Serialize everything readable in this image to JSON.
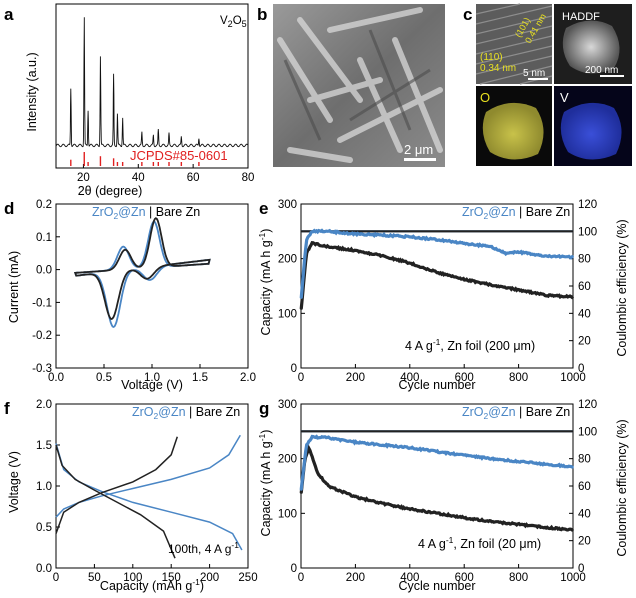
{
  "panels": {
    "a": {
      "letter": "a",
      "sample": "V",
      "sample_sub1": "2",
      "sample_o": "O",
      "sample_sub2": "5",
      "ref_label": "JCPDS#85-0601",
      "xlabel_pre": "2θ (degree)",
      "ylabel": "Intensity (a.u.)",
      "xticks": [
        "20",
        "40",
        "60",
        "80"
      ]
    },
    "b": {
      "letter": "b",
      "scale": "2 μm"
    },
    "c": {
      "letter": "c",
      "hrtem_plane1": "(110)",
      "hrtem_d1": "0.34 nm",
      "hrtem_plane2": "(101)",
      "hrtem_d2": "0.41 nm",
      "hrtem_scale": "5 nm",
      "haadf_label": "HADDF",
      "haadf_scale": "200 nm",
      "map_o": "O",
      "map_v": "V"
    },
    "legend": {
      "zro": "ZrO",
      "sub2": "2",
      "atzn": "@Zn",
      "sep": " | ",
      "bare": "Bare Zn"
    },
    "d": {
      "letter": "d",
      "xlabel": "Voltage (V)",
      "ylabel": "Current (mA)"
    },
    "e": {
      "letter": "e",
      "xlabel": "Cycle number",
      "ylabel": "Capacity (mA h g",
      "ylabel_sup": "-1",
      "ylabel_end": ")",
      "y2label": "Coulombic efficiency (%)",
      "cond_a": "4 A g",
      "cond_sup": "-1",
      "cond_b": ", Zn foil (200 μm)"
    },
    "f": {
      "letter": "f",
      "xlabel": "Capacity (mAh g",
      "xlabel_sup": "-1",
      "xlabel_end": ")",
      "ylabel": "Voltage (V)",
      "cond_a": "100th, 4 A g",
      "cond_sup": "-1"
    },
    "g": {
      "letter": "g",
      "xlabel": "Cycle number",
      "ylabel": "Capacity (mA h g",
      "ylabel_sup": "-1",
      "ylabel_end": ")",
      "y2label": "Coulombic efficiency (%)",
      "cond_a": "4 A g",
      "cond_sup": "-1",
      "cond_b": ", Zn foil (20 μm)"
    }
  },
  "colors": {
    "zro2": "#4a86c5",
    "bare": "#222222",
    "ref": "#e02020"
  },
  "chart_data": [
    {
      "id": "a",
      "type": "line",
      "title": "V2O5",
      "xlabel": "2θ (degree)",
      "ylabel": "Intensity (a.u.)",
      "xlim": [
        10,
        80
      ],
      "xticks": [
        20,
        40,
        60,
        80
      ],
      "peaks_2theta": [
        15.4,
        20.3,
        21.7,
        26.2,
        31.0,
        32.4,
        34.3,
        41.3,
        45.5,
        47.3,
        51.2,
        55.7,
        62.1
      ],
      "peak_rel_intensity": [
        0.45,
        1.0,
        0.28,
        0.7,
        0.55,
        0.25,
        0.22,
        0.1,
        0.08,
        0.12,
        0.09,
        0.07,
        0.06
      ],
      "reference": "JCPDS#85-0601"
    },
    {
      "id": "d",
      "type": "line",
      "xlabel": "Voltage (V)",
      "ylabel": "Current (mA)",
      "xlim": [
        0.0,
        2.0
      ],
      "ylim": [
        -0.3,
        0.2
      ],
      "xticks": [
        0.0,
        0.5,
        1.0,
        1.5,
        2.0
      ],
      "yticks": [
        -0.3,
        -0.2,
        -0.1,
        0.0,
        0.1,
        0.2
      ],
      "series": [
        {
          "name": "ZrO2@Zn",
          "anodic_peaks_V": [
            0.7,
            1.02
          ],
          "anodic_peak_mA": [
            0.07,
            0.14
          ],
          "cathodic_peaks_V": [
            0.6,
            0.98
          ],
          "cathodic_peak_mA": [
            -0.17,
            -0.04
          ]
        },
        {
          "name": "Bare Zn",
          "anodic_peaks_V": [
            0.72,
            1.04
          ],
          "anodic_peak_mA": [
            0.06,
            0.15
          ],
          "cathodic_peaks_V": [
            0.58,
            0.95
          ],
          "cathodic_peak_mA": [
            -0.145,
            -0.035
          ]
        }
      ]
    },
    {
      "id": "e",
      "type": "scatter",
      "xlabel": "Cycle number",
      "ylabel": "Capacity (mA h g-1)",
      "y2label": "Coulombic efficiency (%)",
      "xlim": [
        0,
        1000
      ],
      "ylim": [
        0,
        300
      ],
      "y2lim": [
        0,
        120
      ],
      "xticks": [
        0,
        200,
        400,
        600,
        800,
        1000
      ],
      "yticks": [
        0,
        100,
        200,
        300
      ],
      "y2ticks": [
        0,
        20,
        40,
        60,
        80,
        100,
        120
      ],
      "series": [
        {
          "name": "ZrO2@Zn capacity",
          "cycles": [
            1,
            20,
            40,
            100,
            200,
            300,
            400,
            500,
            600,
            700,
            750,
            800,
            900,
            1000
          ],
          "values": [
            130,
            235,
            250,
            250,
            245,
            243,
            240,
            235,
            228,
            222,
            210,
            212,
            205,
            203
          ]
        },
        {
          "name": "Bare Zn capacity",
          "cycles": [
            1,
            20,
            40,
            100,
            200,
            300,
            400,
            500,
            600,
            700,
            800,
            900,
            1000
          ],
          "values": [
            110,
            210,
            228,
            222,
            215,
            205,
            192,
            175,
            162,
            152,
            143,
            133,
            130
          ]
        },
        {
          "name": "ZrO2@Zn CE",
          "cycles": [
            0,
            1000
          ],
          "values": [
            100,
            100
          ]
        },
        {
          "name": "Bare Zn CE",
          "cycles": [
            0,
            1000
          ],
          "values": [
            100,
            100
          ]
        }
      ],
      "annotation": "4 A g-1, Zn foil (200 μm)"
    },
    {
      "id": "f",
      "type": "line",
      "xlabel": "Capacity (mAh g-1)",
      "ylabel": "Voltage (V)",
      "xlim": [
        0,
        250
      ],
      "ylim": [
        0.0,
        2.0
      ],
      "xticks": [
        0,
        50,
        100,
        150,
        200,
        250
      ],
      "yticks": [
        0.0,
        0.5,
        1.0,
        1.5,
        2.0
      ],
      "series": [
        {
          "name": "ZrO2@Zn charge",
          "x": [
            0,
            10,
            30,
            60,
            100,
            150,
            200,
            225,
            240
          ],
          "y": [
            0.62,
            0.72,
            0.8,
            0.88,
            0.97,
            1.08,
            1.22,
            1.38,
            1.62
          ]
        },
        {
          "name": "ZrO2@Zn discharge",
          "x": [
            0,
            10,
            30,
            60,
            100,
            150,
            200,
            230,
            242
          ],
          "y": [
            1.52,
            1.2,
            1.05,
            0.93,
            0.8,
            0.68,
            0.56,
            0.42,
            0.22
          ]
        },
        {
          "name": "Bare Zn charge",
          "x": [
            0,
            10,
            30,
            60,
            100,
            130,
            150,
            158
          ],
          "y": [
            0.42,
            0.68,
            0.8,
            0.92,
            1.05,
            1.2,
            1.38,
            1.6
          ]
        },
        {
          "name": "Bare Zn discharge",
          "x": [
            0,
            8,
            25,
            50,
            80,
            110,
            140,
            155
          ],
          "y": [
            1.5,
            1.25,
            1.08,
            0.95,
            0.8,
            0.65,
            0.45,
            0.12
          ]
        }
      ],
      "annotation": "100th, 4 A g-1"
    },
    {
      "id": "g",
      "type": "scatter",
      "xlabel": "Cycle number",
      "ylabel": "Capacity (mA h g-1)",
      "y2label": "Coulombic efficiency (%)",
      "xlim": [
        0,
        1000
      ],
      "ylim": [
        0,
        300
      ],
      "y2lim": [
        0,
        120
      ],
      "xticks": [
        0,
        200,
        400,
        600,
        800,
        1000
      ],
      "yticks": [
        0,
        100,
        200,
        300
      ],
      "y2ticks": [
        0,
        20,
        40,
        60,
        80,
        100,
        120
      ],
      "series": [
        {
          "name": "ZrO2@Zn capacity",
          "cycles": [
            1,
            20,
            40,
            100,
            200,
            300,
            400,
            500,
            600,
            700,
            800,
            900,
            1000
          ],
          "values": [
            145,
            225,
            240,
            238,
            230,
            225,
            220,
            213,
            206,
            200,
            195,
            190,
            185
          ]
        },
        {
          "name": "Bare Zn capacity",
          "cycles": [
            1,
            15,
            30,
            60,
            100,
            200,
            300,
            400,
            500,
            600,
            700,
            800,
            900,
            1000
          ],
          "values": [
            140,
            200,
            220,
            175,
            150,
            130,
            118,
            108,
            100,
            92,
            85,
            80,
            74,
            70
          ]
        },
        {
          "name": "ZrO2@Zn CE",
          "cycles": [
            0,
            1000
          ],
          "values": [
            100,
            100
          ]
        },
        {
          "name": "Bare Zn CE",
          "cycles": [
            0,
            1000
          ],
          "values": [
            100,
            100
          ]
        }
      ],
      "annotation": "4 A g-1, Zn foil (20 μm)"
    }
  ]
}
